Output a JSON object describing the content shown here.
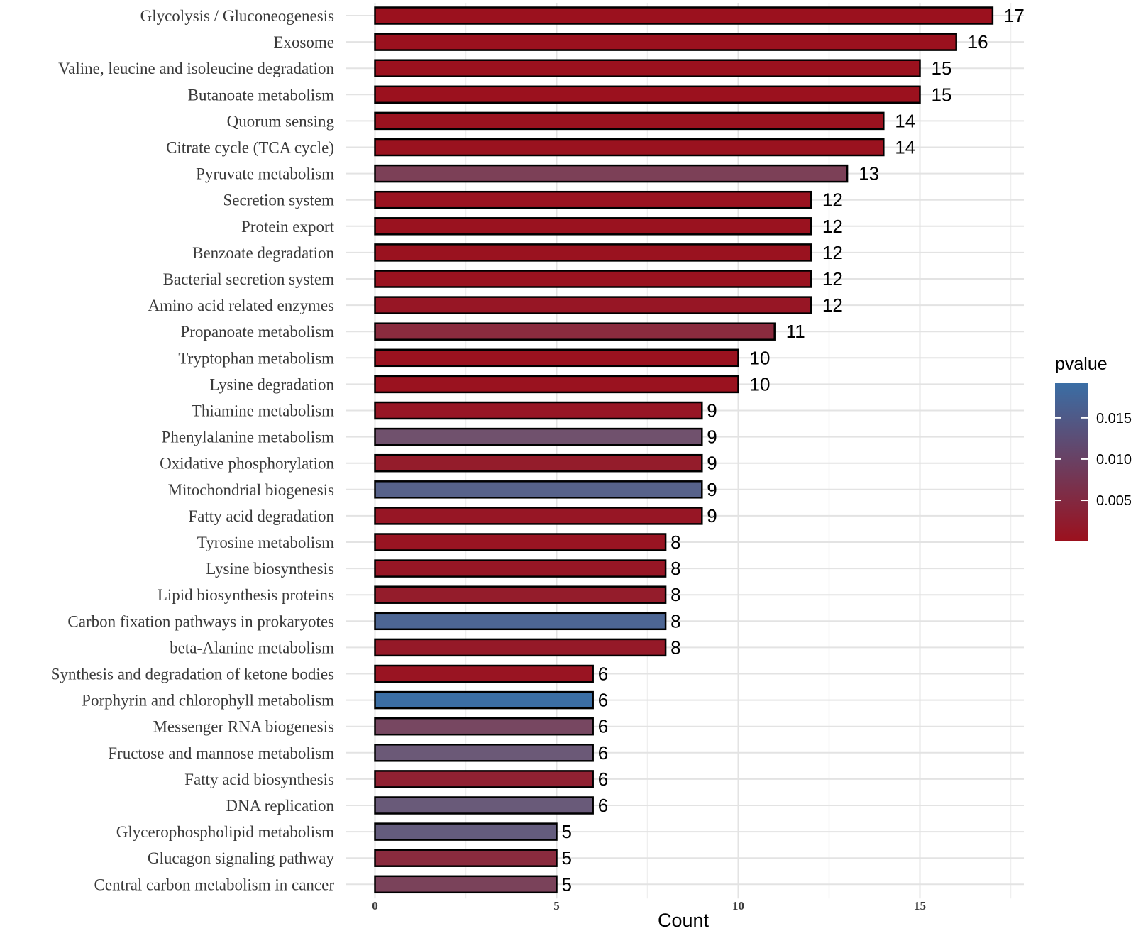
{
  "chart_data": {
    "type": "bar",
    "orientation": "horizontal",
    "title": "",
    "xlabel": "Count",
    "ylabel": "",
    "xlim": [
      0,
      17.8
    ],
    "x_ticks": [
      0,
      5,
      10,
      15
    ],
    "grid": true,
    "categories": [
      "Glycolysis / Gluconeogenesis",
      "Exosome",
      "Valine, leucine and isoleucine degradation",
      "Butanoate metabolism",
      "Quorum sensing",
      "Citrate cycle (TCA cycle)",
      "Pyruvate metabolism",
      "Secretion system",
      "Protein export",
      "Benzoate degradation",
      "Bacterial secretion system",
      "Amino acid related enzymes",
      "Propanoate metabolism",
      "Tryptophan metabolism",
      "Lysine degradation",
      "Thiamine metabolism",
      "Phenylalanine metabolism",
      "Oxidative phosphorylation",
      "Mitochondrial biogenesis",
      "Fatty acid degradation",
      "Tyrosine metabolism",
      "Lysine biosynthesis",
      "Lipid biosynthesis proteins",
      "Carbon fixation pathways in prokaryotes",
      "beta-Alanine metabolism",
      "Synthesis and degradation of ketone bodies",
      "Porphyrin and chlorophyll metabolism",
      "Messenger RNA biogenesis",
      "Fructose and mannose metabolism",
      "Fatty acid biosynthesis",
      "DNA replication",
      "Glycerophospholipid metabolism",
      "Glucagon signaling pathway",
      "Central carbon metabolism in cancer"
    ],
    "values": [
      17,
      16,
      15,
      15,
      14,
      14,
      13,
      12,
      12,
      12,
      12,
      12,
      11,
      10,
      10,
      9,
      9,
      9,
      9,
      9,
      8,
      8,
      8,
      8,
      8,
      6,
      6,
      6,
      6,
      6,
      6,
      5,
      5,
      5
    ],
    "pvalues": [
      0.0001,
      0.0001,
      0.0001,
      0.0001,
      0.0002,
      0.0002,
      0.0062,
      0.0003,
      0.0002,
      0.0002,
      0.0002,
      0.0008,
      0.0035,
      0.0002,
      0.0002,
      0.0008,
      0.0085,
      0.0015,
      0.0135,
      0.0008,
      0.0005,
      0.0008,
      0.0015,
      0.0155,
      0.0012,
      0.0005,
      0.019,
      0.0072,
      0.0095,
      0.0022,
      0.0098,
      0.0108,
      0.0035,
      0.0065
    ],
    "data_labels": [
      "17",
      "16",
      "15",
      "15",
      "14",
      "14",
      "13",
      "12",
      "12",
      "12",
      "12",
      "12",
      "11",
      "10",
      "10",
      "9",
      "9",
      "9",
      "9",
      "9",
      "8",
      "8",
      "8",
      "8",
      "8",
      "6",
      "6",
      "6",
      "6",
      "6",
      "6",
      "5",
      "5",
      "5"
    ],
    "legend": {
      "title": "pvalue",
      "placement": "right",
      "range": [
        0.0001,
        0.0192
      ],
      "ticks": [
        0.005,
        0.01,
        0.015
      ],
      "tick_labels": [
        "0.005",
        "0.010",
        "0.015"
      ],
      "low_color": "#9b111e",
      "high_color": "#3a6ea5"
    }
  },
  "colors": {
    "low": "#9b111e",
    "high": "#3a6ea5",
    "grid_major": "#e3e3e3",
    "grid_minor": "#efefef"
  }
}
